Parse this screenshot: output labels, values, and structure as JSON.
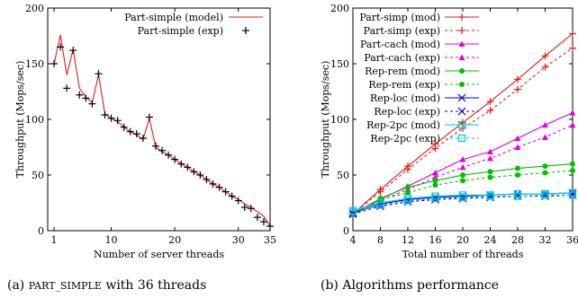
{
  "colors": {
    "red": "#e41a1c",
    "magenta": "#e000e0",
    "green": "#00c000",
    "blue": "#0000d0",
    "cyan": "#00c8d8"
  },
  "captions": {
    "a": "(a) PART_SIMPLE with 36 threads",
    "b": "(b) Algorithms performance"
  },
  "chart_data": [
    {
      "type": "line",
      "xlabel": "Number of server threads",
      "ylabel": "Throughput (Mops/sec)",
      "xlim": [
        0,
        35
      ],
      "ylim": [
        0,
        200
      ],
      "xticks": [
        1,
        10,
        20,
        30,
        35
      ],
      "yticks": [
        0,
        50,
        100,
        150,
        200
      ],
      "legend_position": "top-right",
      "series": [
        {
          "name": "Part-simple (model)",
          "color": "red",
          "dash": false,
          "marker": "none",
          "x": [
            1,
            2,
            3,
            4,
            5,
            6,
            7,
            8,
            9,
            10,
            11,
            12,
            13,
            14,
            15,
            16,
            17,
            18,
            19,
            20,
            21,
            22,
            23,
            24,
            25,
            26,
            27,
            28,
            29,
            30,
            31,
            32,
            33,
            34,
            35
          ],
          "y": [
            150,
            176,
            140,
            163,
            128,
            120,
            115,
            140,
            105,
            101,
            98,
            93,
            89,
            86,
            82,
            101,
            75,
            71,
            68,
            64,
            60,
            57,
            53,
            50,
            46,
            42,
            39,
            35,
            31,
            28,
            24,
            21,
            17,
            13,
            4
          ]
        },
        {
          "name": "Part-simple (exp)",
          "color": "black",
          "dash": false,
          "marker": "plus",
          "noline": true,
          "x": [
            1,
            2,
            3,
            4,
            5,
            6,
            7,
            8,
            9,
            10,
            11,
            12,
            13,
            14,
            15,
            16,
            17,
            18,
            19,
            20,
            21,
            22,
            23,
            24,
            25,
            26,
            27,
            28,
            29,
            30,
            31,
            32,
            33,
            34,
            35
          ],
          "y": [
            150,
            165,
            128,
            162,
            122,
            119,
            114,
            141,
            104,
            101,
            99,
            93,
            89,
            87,
            83,
            102,
            76,
            72,
            68,
            64,
            60,
            57,
            53,
            50,
            46,
            42,
            39,
            35,
            31,
            27,
            21,
            20,
            12,
            8,
            4
          ]
        }
      ]
    },
    {
      "type": "line",
      "xlabel": "Total number of threads",
      "ylabel": "Throughput (Mops/sec)",
      "xlim": [
        4,
        36
      ],
      "ylim": [
        0,
        200
      ],
      "xticks": [
        4,
        8,
        12,
        16,
        20,
        24,
        28,
        32,
        36
      ],
      "yticks": [
        0,
        50,
        100,
        150,
        200
      ],
      "legend_position": "top-left",
      "series": [
        {
          "name": "Part-simp (mod)",
          "color": "red",
          "dash": false,
          "marker": "plus",
          "x": [
            4,
            8,
            12,
            16,
            20,
            24,
            28,
            32,
            36
          ],
          "y": [
            15,
            37,
            58,
            78,
            97,
            116,
            136,
            157,
            177
          ]
        },
        {
          "name": "Part-simp (exp)",
          "color": "red",
          "dash": true,
          "marker": "plus",
          "x": [
            4,
            8,
            12,
            16,
            20,
            24,
            28,
            32,
            36
          ],
          "y": [
            15,
            35,
            55,
            74,
            92,
            108,
            127,
            147,
            164
          ]
        },
        {
          "name": "Part-cach (mod)",
          "color": "magenta",
          "dash": false,
          "marker": "triangle",
          "x": [
            4,
            8,
            12,
            16,
            20,
            24,
            28,
            32,
            36
          ],
          "y": [
            15,
            28,
            40,
            52,
            64,
            71,
            83,
            95,
            106
          ]
        },
        {
          "name": "Part-cach (exp)",
          "color": "magenta",
          "dash": true,
          "marker": "triangle",
          "x": [
            4,
            8,
            12,
            16,
            20,
            24,
            28,
            32,
            36
          ],
          "y": [
            15,
            27,
            37,
            48,
            57,
            65,
            75,
            84,
            95
          ]
        },
        {
          "name": "Rep-rem (mod)",
          "color": "green",
          "dash": false,
          "marker": "circle",
          "x": [
            4,
            8,
            12,
            16,
            20,
            24,
            28,
            32,
            36
          ],
          "y": [
            15,
            29,
            39,
            45,
            50,
            53,
            56,
            58,
            60
          ]
        },
        {
          "name": "Rep-rem (exp)",
          "color": "green",
          "dash": true,
          "marker": "circle",
          "x": [
            4,
            8,
            12,
            16,
            20,
            24,
            28,
            32,
            36
          ],
          "y": [
            15,
            28,
            34,
            41,
            45,
            48,
            50,
            52,
            54
          ]
        },
        {
          "name": "Rep-loc (mod)",
          "color": "blue",
          "dash": false,
          "marker": "x",
          "x": [
            4,
            8,
            12,
            16,
            20,
            24,
            28,
            32,
            36
          ],
          "y": [
            16,
            24,
            28,
            30,
            31,
            32,
            33,
            33,
            34
          ]
        },
        {
          "name": "Rep-loc (exp)",
          "color": "blue",
          "dash": true,
          "marker": "x",
          "x": [
            4,
            8,
            12,
            16,
            20,
            24,
            28,
            32,
            36
          ],
          "y": [
            15,
            22,
            26,
            28,
            29,
            30,
            31,
            31,
            32
          ]
        },
        {
          "name": "Rep-2pc (mod)",
          "color": "cyan",
          "dash": false,
          "marker": "square",
          "x": [
            4,
            8,
            12,
            16,
            20,
            24,
            28,
            32,
            36
          ],
          "y": [
            18,
            25,
            29,
            31,
            32,
            32,
            33,
            33,
            34
          ]
        },
        {
          "name": "Rep-2pc (exp)",
          "color": "cyan",
          "dash": true,
          "marker": "square",
          "x": [
            4,
            8,
            12,
            16,
            20,
            24,
            28,
            32,
            36
          ],
          "y": [
            17,
            23,
            27,
            29,
            30,
            31,
            31,
            32,
            32
          ]
        }
      ]
    }
  ]
}
